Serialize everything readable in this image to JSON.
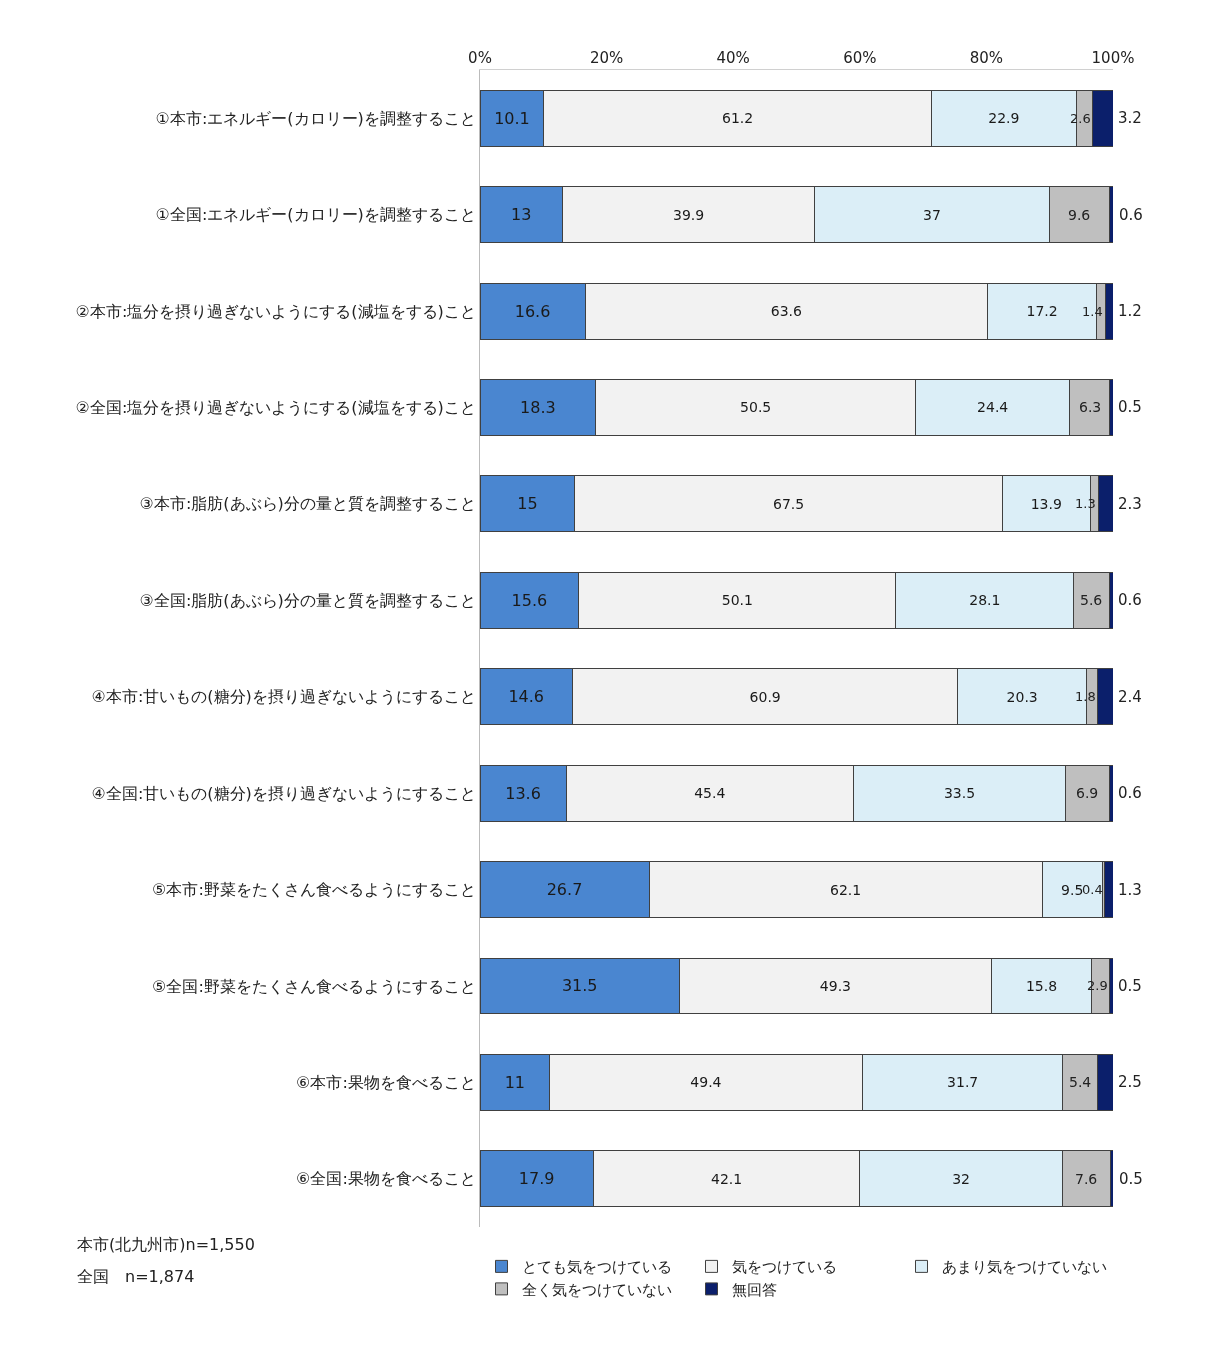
{
  "chart_data": {
    "type": "bar",
    "orientation": "horizontal",
    "stacked": true,
    "data_labels": true,
    "categories": [
      "①本市:エネルギー(カロリー)を調整すること",
      "①全国:エネルギー(カロリー)を調整すること",
      "②本市:塩分を摂り過ぎないようにする(減塩をする)こと",
      "②全国:塩分を摂り過ぎないようにする(減塩をする)こと",
      "③本市:脂肪(あぶら)分の量と質を調整すること",
      "③全国:脂肪(あぶら)分の量と質を調整すること",
      "④本市:甘いもの(糖分)を摂り過ぎないようにすること",
      "④全国:甘いもの(糖分)を摂り過ぎないようにすること",
      "⑤本市:野菜をたくさん食べるようにすること",
      "⑤全国:野菜をたくさん食べるようにすること",
      "⑥本市:果物を食べること",
      "⑥全国:果物を食べること"
    ],
    "series": [
      {
        "name": "とても気をつけている",
        "color": "#4a86d0",
        "values": [
          10.1,
          13,
          16.6,
          18.3,
          15,
          15.6,
          14.6,
          13.6,
          26.7,
          31.5,
          11,
          17.9
        ]
      },
      {
        "name": "気をつけている",
        "color": "#f2f2f2",
        "values": [
          61.2,
          39.9,
          63.6,
          50.5,
          67.5,
          50.1,
          60.9,
          45.4,
          62.1,
          49.3,
          49.4,
          42.1
        ]
      },
      {
        "name": "あまり気をつけていない",
        "color": "#dbeef7",
        "values": [
          22.9,
          37,
          17.2,
          24.4,
          13.9,
          28.1,
          20.3,
          33.5,
          9.5,
          15.8,
          31.7,
          32
        ]
      },
      {
        "name": "全く気をつけていない",
        "color": "#bfbfbf",
        "values": [
          2.6,
          9.6,
          1.4,
          6.3,
          1.3,
          5.6,
          1.8,
          6.9,
          0.4,
          2.9,
          5.4,
          7.6
        ]
      },
      {
        "name": "無回答",
        "color": "#0b1f6b",
        "values": [
          3.2,
          0.6,
          1.2,
          0.5,
          2.3,
          0.6,
          2.4,
          0.6,
          1.3,
          0.5,
          2.5,
          0.5
        ]
      }
    ],
    "xlim": [
      0,
      100
    ],
    "xticks": [
      {
        "value": 0,
        "label": "0%"
      },
      {
        "value": 20,
        "label": "20%"
      },
      {
        "value": 40,
        "label": "40%"
      },
      {
        "value": 60,
        "label": "60%"
      },
      {
        "value": 80,
        "label": "80%"
      },
      {
        "value": 100,
        "label": "100%"
      }
    ],
    "grid": false,
    "legend": "bottom",
    "annotations": [
      "本市(北九州市)n=1,550",
      "全国　n=1,874"
    ]
  }
}
